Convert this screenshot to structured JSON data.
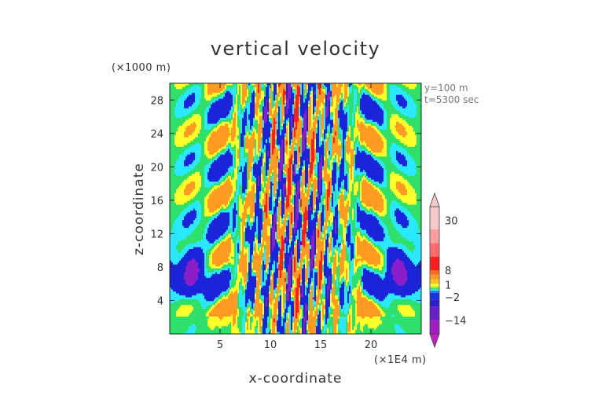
{
  "chart_data": {
    "type": "heatmap",
    "title": "vertical velocity",
    "xlabel": "x-coordinate",
    "ylabel": "z-coordinate",
    "x_unit": "(×1E4 m)",
    "y_unit": "(×1000 m)",
    "xlim": [
      0,
      25
    ],
    "ylim": [
      0,
      30
    ],
    "x_ticks": [
      5,
      10,
      15,
      20
    ],
    "y_ticks": [
      4,
      8,
      12,
      16,
      20,
      24,
      28
    ],
    "annotations": [
      "y=100  m",
      "t=5300 sec"
    ],
    "colorbar": {
      "range": [
        -20,
        36
      ],
      "labeled_values": [
        {
          "value": 30,
          "label": "30"
        },
        {
          "value": 8,
          "label": "8"
        },
        {
          "value": 1,
          "label": "1"
        },
        {
          "value": -2,
          "label": "−2"
        },
        {
          "value": -14,
          "label": "−14"
        }
      ]
    },
    "colors": {
      "background_green": "#2fe06a",
      "strong_positive": "#ff1e1e",
      "positive": "#ff9a22",
      "weak_positive": "#ffff2a",
      "weak_negative": "#2ae8ff",
      "negative": "#1b24d8",
      "strong_negative": "#8a1ec8",
      "extreme_positive": "#f6c8c8",
      "extreme_negative": "#c21ec2"
    }
  }
}
